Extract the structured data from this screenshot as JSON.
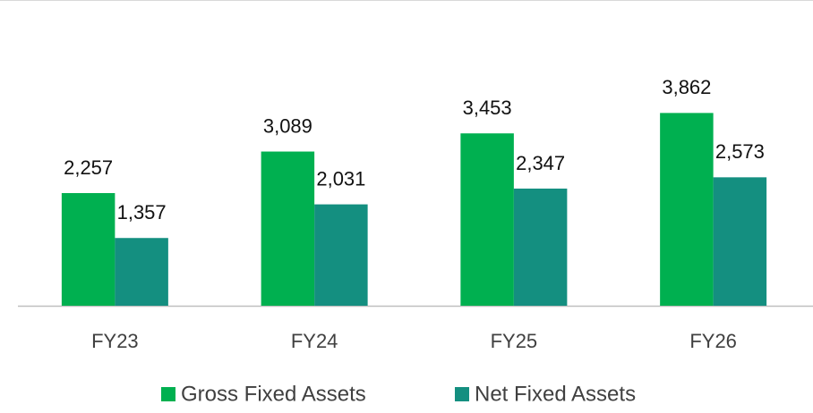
{
  "chart_data": {
    "type": "bar",
    "categories": [
      "FY23",
      "FY24",
      "FY25",
      "FY26"
    ],
    "series": [
      {
        "name": "Gross Fixed Assets",
        "color": "#00b050",
        "values": [
          2257,
          3089,
          3453,
          3862
        ],
        "value_labels": [
          "2,257",
          "3,089",
          "3,453",
          "3,862"
        ]
      },
      {
        "name": "Net Fixed Assets",
        "color": "#148f80",
        "values": [
          1357,
          2031,
          2347,
          2573
        ],
        "value_labels": [
          "1,357",
          "2,031",
          "2,347",
          "2,573"
        ]
      }
    ],
    "ylim": [
      0,
      6000
    ],
    "legend": "bottom"
  }
}
